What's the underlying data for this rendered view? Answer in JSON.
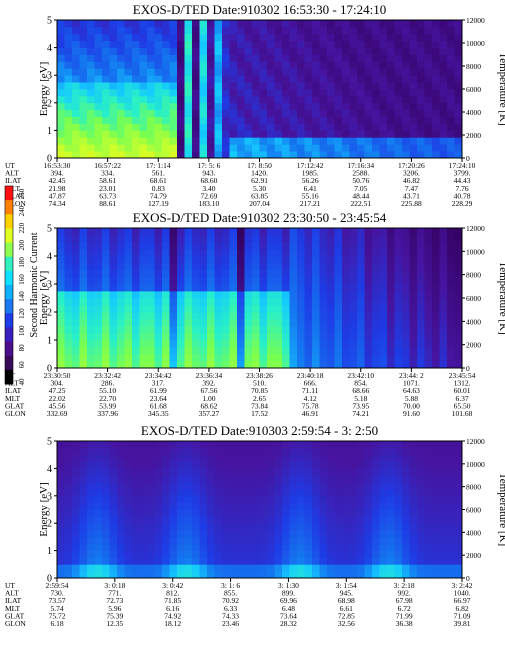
{
  "chart_data": [
    {
      "type": "heatmap",
      "title": "EXOS-D/TED   Date:910302  16:53:30 - 17:24:10",
      "ylabel": "Energy [eV]",
      "ylabel_right": "Temperature [K]",
      "ylim": [
        0,
        5
      ],
      "ylim_right": [
        0,
        12000
      ],
      "yticks": [
        "0",
        "1",
        "2",
        "3",
        "4",
        "5"
      ],
      "yticks_right": [
        "0",
        "2000",
        "4000",
        "6000",
        "8000",
        "10000",
        "12000"
      ],
      "table_rows": [
        "UT",
        "ALT",
        "ILAT",
        "MLT",
        "GLAT",
        "GLON"
      ],
      "table": [
        [
          "16:53:30",
          "394.",
          "42.45",
          "21.98",
          "47.87",
          "74.34"
        ],
        [
          "16:57:22",
          "334.",
          "58.61",
          "23.01",
          "63.73",
          "88.61"
        ],
        [
          "17: 1:14",
          "561.",
          "68.61",
          "0.83",
          "74.79",
          "127.19"
        ],
        [
          "17: 5: 6",
          "943.",
          "68.60",
          "3.40",
          "72.69",
          "183.10"
        ],
        [
          "17: 8:50",
          "1420.",
          "62.91",
          "5.30",
          "63.85",
          "207.04"
        ],
        [
          "17:12:42",
          "1985.",
          "56.26",
          "6.41",
          "55.16",
          "217.21"
        ],
        [
          "17:16:34",
          "2588.",
          "50.76",
          "7.05",
          "48.44",
          "222.51"
        ],
        [
          "17:20:26",
          "3206.",
          "46.82",
          "7.47",
          "43.71",
          "225.88"
        ],
        [
          "17:24:10",
          "3799.",
          "44.43",
          "7.76",
          "40.78",
          "228.29"
        ]
      ]
    },
    {
      "type": "heatmap",
      "title": "EXOS-D/TED   Date:910302  23:30:50 - 23:45:54",
      "ylabel": "Energy [eV]",
      "ylabel_right": "Temperature [K]",
      "ylim": [
        0,
        5
      ],
      "ylim_right": [
        0,
        12000
      ],
      "yticks": [
        "0",
        "1",
        "2",
        "3",
        "4",
        "5"
      ],
      "yticks_right": [
        "0",
        "2000",
        "4000",
        "6000",
        "8000",
        "10000",
        "12000"
      ],
      "table_rows": [
        "UT",
        "ALT",
        "ILAT",
        "MLT",
        "GLAT",
        "GLON"
      ],
      "table": [
        [
          "23:30:50",
          "304.",
          "47.25",
          "22.02",
          "45.56",
          "332.69"
        ],
        [
          "23:32:42",
          "286.",
          "55.10",
          "22.70",
          "53.99",
          "337.96"
        ],
        [
          "23:34:42",
          "317.",
          "61.99",
          "23.64",
          "61.68",
          "345.35"
        ],
        [
          "23:36:34",
          "392.",
          "67.56",
          "1.00",
          "68.62",
          "357.27"
        ],
        [
          "23:38:26",
          "510.",
          "70.85",
          "2.65",
          "73.84",
          "17.52"
        ],
        [
          "23:40:18",
          "666.",
          "71.11",
          "4.12",
          "75.78",
          "46.91"
        ],
        [
          "23:42:10",
          "854.",
          "68.66",
          "5.18",
          "73.95",
          "74.21"
        ],
        [
          "23:44: 2",
          "1071.",
          "64.63",
          "5.88",
          "70.00",
          "91.60"
        ],
        [
          "23:45:54",
          "1312.",
          "60.01",
          "6.37",
          "65.50",
          "101.68"
        ]
      ]
    },
    {
      "type": "heatmap",
      "title": "EXOS-D/TED   Date:910303   2:59:54 -  3: 2:50",
      "ylabel": "Energy [eV]",
      "ylabel_right": "Temperature [K]",
      "ylim": [
        0,
        5
      ],
      "ylim_right": [
        0,
        12000
      ],
      "yticks": [
        "0",
        "1",
        "2",
        "3",
        "4",
        "5"
      ],
      "yticks_right": [
        "0",
        "2000",
        "4000",
        "6000",
        "8000",
        "10000",
        "12000"
      ],
      "table_rows": [
        "UT",
        "ALT",
        "ILAT",
        "MLT",
        "GLAT",
        "GLON"
      ],
      "table": [
        [
          "2:59:54",
          "730.",
          "73.57",
          "5.74",
          "75.72",
          "6.18"
        ],
        [
          "3: 0:18",
          "771.",
          "72.73",
          "5.96",
          "75.39",
          "12.35"
        ],
        [
          "3: 0:42",
          "812.",
          "71.85",
          "6.16",
          "74.92",
          "18.12"
        ],
        [
          "3: 1: 6",
          "855.",
          "70.92",
          "6.33",
          "74.33",
          "23.46"
        ],
        [
          "3: 1:30",
          "899.",
          "69.96",
          "6.48",
          "73.64",
          "28.32"
        ],
        [
          "3: 1:54",
          "945.",
          "68.98",
          "6.61",
          "72.85",
          "32.56"
        ],
        [
          "3: 2:18",
          "992.",
          "67.98",
          "6.72",
          "71.99",
          "36.38"
        ],
        [
          "3: 2:42",
          "1040.",
          "66.97",
          "6.82",
          "71.09",
          "39.81"
        ]
      ]
    }
  ],
  "colorbar": {
    "label": "Second Harmonic Current",
    "ticks": [
      "40",
      "60",
      "80",
      "100",
      "120",
      "140",
      "160",
      "180",
      "200",
      "220",
      "240",
      "250"
    ],
    "colors": [
      "#000000",
      "#3a0a5a",
      "#4b0f8c",
      "#3a1fbf",
      "#1e3ce8",
      "#1a78f0",
      "#10b0ff",
      "#10e0ff",
      "#30f0c0",
      "#90ff50",
      "#e0ff20",
      "#ffd000",
      "#ff8000",
      "#ff1010"
    ]
  }
}
